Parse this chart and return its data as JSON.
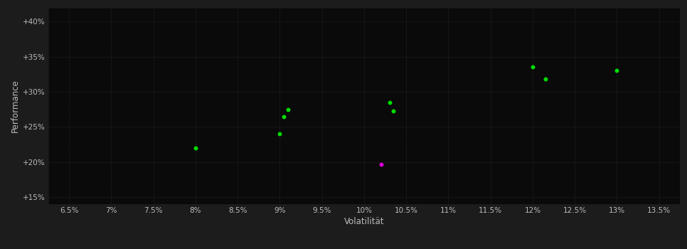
{
  "green_points": [
    [
      8.0,
      22.0
    ],
    [
      9.0,
      24.0
    ],
    [
      9.05,
      26.5
    ],
    [
      9.1,
      27.5
    ],
    [
      10.3,
      28.5
    ],
    [
      10.35,
      27.3
    ],
    [
      12.0,
      33.5
    ],
    [
      12.15,
      31.8
    ],
    [
      13.0,
      33.0
    ]
  ],
  "magenta_points": [
    [
      10.2,
      19.7
    ]
  ],
  "green_color": "#00dd00",
  "magenta_color": "#dd00dd",
  "background_color": "#1c1c1c",
  "plot_bg_color": "#0a0a0a",
  "grid_color": "#2e2e2e",
  "text_color": "#bbbbbb",
  "xlabel": "Volatilität",
  "ylabel": "Performance",
  "xlim": [
    6.25,
    13.75
  ],
  "ylim": [
    14.0,
    42.0
  ],
  "xticks": [
    6.5,
    7.0,
    7.5,
    8.0,
    8.5,
    9.0,
    9.5,
    10.0,
    10.5,
    11.0,
    11.5,
    12.0,
    12.5,
    13.0,
    13.5
  ],
  "xtick_labels": [
    "6.5%",
    "7%",
    "7.5%",
    "8%",
    "8.5%",
    "9%",
    "9.5%",
    "10%",
    "10.5%",
    "11%",
    "11.5%",
    "12%",
    "12.5%",
    "13%",
    "13.5%"
  ],
  "yticks": [
    15,
    20,
    25,
    30,
    35,
    40
  ],
  "ytick_labels": [
    "+15%",
    "+20%",
    "+25%",
    "+30%",
    "+35%",
    "+40%"
  ],
  "marker_size": 18,
  "figsize": [
    9.66,
    3.5
  ],
  "dpi": 100
}
